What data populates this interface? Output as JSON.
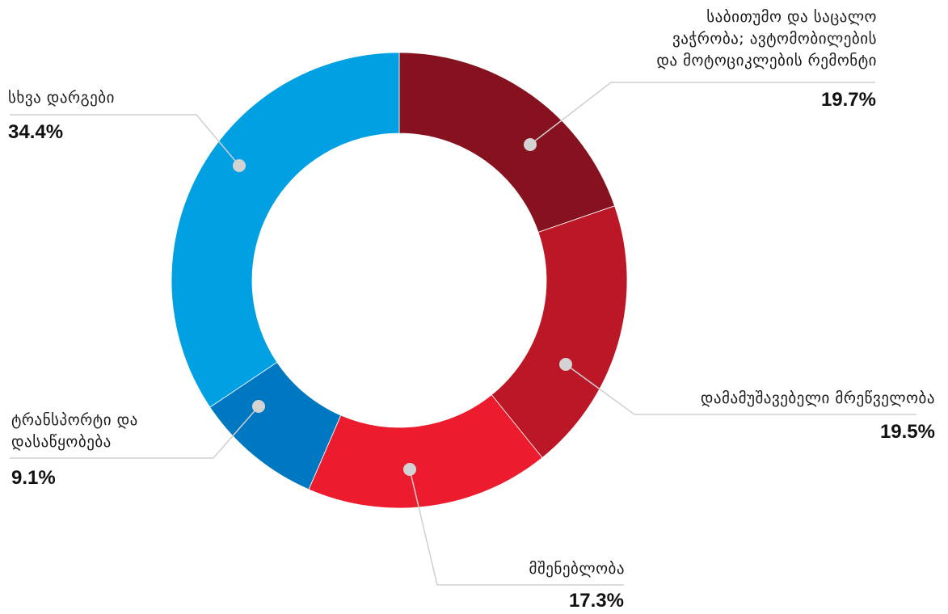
{
  "chart_data": {
    "type": "pie",
    "donut": true,
    "legend": "none",
    "categories": [
      "საბითუმო და საცალო ვაჭრობა; ავტომობილების და მოტოციკლების რემონტი",
      "დამამუშავებელი მრეწველობა",
      "მშენებლობა",
      "ტრანსპორტი და დასაწყობება",
      "სხვა დარგები"
    ],
    "values": [
      19.7,
      19.5,
      17.3,
      9.1,
      34.4
    ],
    "value_labels": [
      "19.7%",
      "19.5%",
      "17.3%",
      "9.1%",
      "34.4%"
    ],
    "colors": [
      "#86121f",
      "#bc1727",
      "#ec1c2e",
      "#0078c1",
      "#00a0e3"
    ]
  },
  "labels": {
    "trade": {
      "line1": "საბითუმო და საცალო",
      "line2": "ვაჭრობა; ავტომობილების",
      "line3": "და მოტოციკლების რემონტი",
      "pct": "19.7%"
    },
    "manufacturing": {
      "line1": "დამამუშავებელი მრეწველობა",
      "pct": "19.5%"
    },
    "construction": {
      "line1": "მშენებლობა",
      "pct": "17.3%"
    },
    "transport": {
      "line1": "ტრანსპორტი და",
      "line2": "დასაწყობება",
      "pct": "9.1%"
    },
    "other": {
      "line1": "სხვა დარგები",
      "pct": "34.4%"
    }
  }
}
